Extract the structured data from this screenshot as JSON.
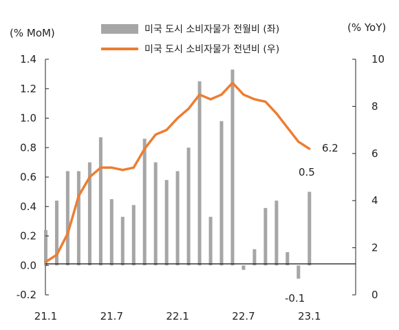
{
  "chart_data": {
    "type": "bar+line",
    "left_axis_label": "(% MoM)",
    "right_axis_label": "(% YoY)",
    "left_ylim": [
      -0.2,
      1.4
    ],
    "left_ticks": [
      "-0.2",
      "0.0",
      "0.2",
      "0.4",
      "0.6",
      "0.8",
      "1.0",
      "1.2",
      "1.4"
    ],
    "right_ylim": [
      0,
      10
    ],
    "right_ticks": [
      "0",
      "2",
      "4",
      "6",
      "8",
      "10"
    ],
    "x_tick_labels": [
      "21.1",
      "21.7",
      "22.1",
      "22.7",
      "23.1"
    ],
    "x": [
      "21.1",
      "21.2",
      "21.3",
      "21.4",
      "21.5",
      "21.6",
      "21.7",
      "21.8",
      "21.9",
      "21.10",
      "21.11",
      "21.12",
      "22.1",
      "22.2",
      "22.3",
      "22.4",
      "22.5",
      "22.6",
      "22.7",
      "22.8",
      "22.9",
      "22.10",
      "22.11",
      "22.12",
      "23.1"
    ],
    "series": [
      {
        "name": "미국 도시 소비자물가 전월비 (좌)",
        "axis": "left",
        "kind": "bar",
        "color": "#a6a6a6",
        "values": [
          0.24,
          0.44,
          0.64,
          0.64,
          0.7,
          0.87,
          0.45,
          0.33,
          0.41,
          0.86,
          0.7,
          0.58,
          0.64,
          0.8,
          1.25,
          0.33,
          0.98,
          1.33,
          -0.03,
          0.11,
          0.39,
          0.44,
          0.09,
          -0.09,
          0.5
        ]
      },
      {
        "name": "미국 도시 소비자물가 전년비 (우)",
        "axis": "right",
        "kind": "line",
        "color": "#ed7d31",
        "values": [
          1.4,
          1.7,
          2.6,
          4.2,
          5.0,
          5.4,
          5.4,
          5.3,
          5.4,
          6.2,
          6.8,
          7.0,
          7.5,
          7.9,
          8.5,
          8.3,
          8.5,
          9.0,
          8.5,
          8.3,
          8.2,
          7.7,
          7.1,
          6.5,
          6.2
        ]
      }
    ],
    "annotations": [
      {
        "text": "0.5",
        "x": "23.1"
      },
      {
        "text": "-0.1",
        "x": "22.12"
      },
      {
        "text": "6.2",
        "x": "23.1"
      }
    ]
  }
}
